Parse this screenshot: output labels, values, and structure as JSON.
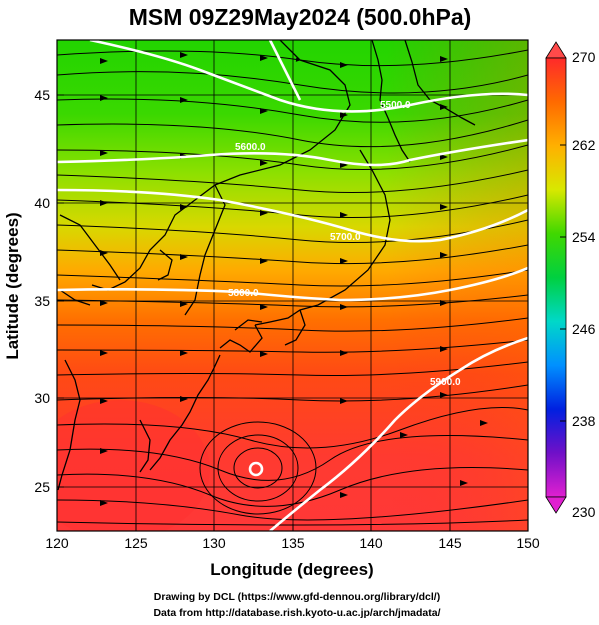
{
  "title": "MSM 09Z29May2024 (500.0hPa)",
  "xlabel": "Longitude (degrees)",
  "ylabel": "Latitude  (degrees)",
  "x_ticks": [
    "120",
    "125",
    "130",
    "135",
    "140",
    "145",
    "150"
  ],
  "y_ticks": [
    "25",
    "30",
    "35",
    "40",
    "45"
  ],
  "colorbar": {
    "ticks": [
      "270",
      "262",
      "254",
      "246",
      "238",
      "230"
    ],
    "colors": [
      "#ff2a2a",
      "#ff6a00",
      "#ffb000",
      "#e8e800",
      "#70e000",
      "#00d000",
      "#00e0c0",
      "#00a0ff",
      "#0020e0",
      "#5010c0",
      "#c000c0",
      "#ff40d0"
    ]
  },
  "contour_labels": [
    "5900.0",
    "5800.0",
    "5800.0",
    "5700.0",
    "5600.0",
    "5500.0"
  ],
  "credits": {
    "line1": "Drawing by DCL (https://www.gfd-dennou.org/library/dcl/)",
    "line2": "Data from http://database.rish.kyoto-u.ac.jp/arch/jmadata/"
  },
  "map": {
    "lon_range": [
      120,
      150
    ],
    "lat_range": [
      22.5,
      47.5
    ],
    "field": "temperature (K) with geopotential height contours and wind streamlines"
  }
}
